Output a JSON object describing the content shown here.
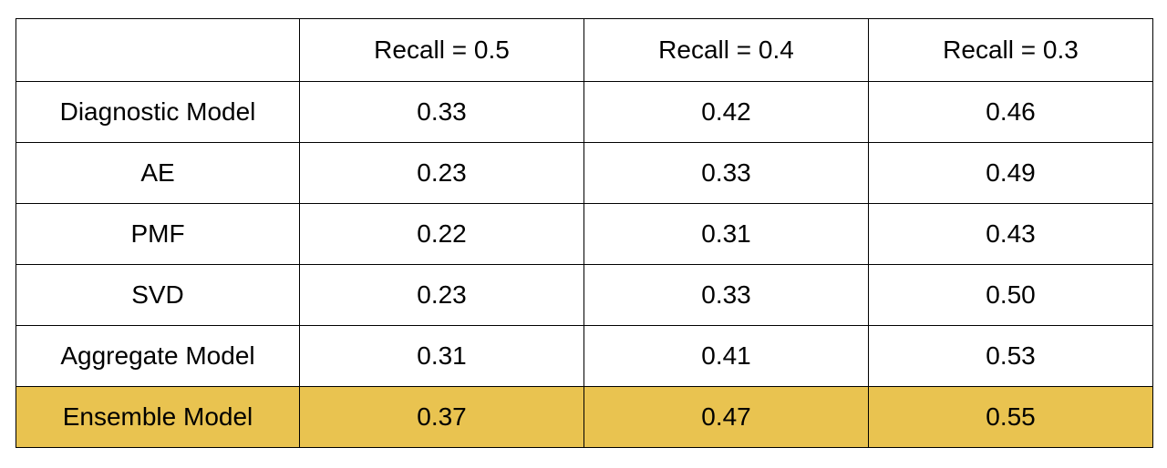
{
  "table": {
    "header": [
      "",
      "Recall = 0.5",
      "Recall = 0.4",
      "Recall = 0.3"
    ],
    "rows": [
      [
        "Diagnostic Model",
        "0.33",
        "0.42",
        "0.46"
      ],
      [
        "AE",
        "0.23",
        "0.33",
        "0.49"
      ],
      [
        "PMF",
        "0.22",
        "0.31",
        "0.43"
      ],
      [
        "SVD",
        "0.23",
        "0.33",
        "0.50"
      ],
      [
        "Aggregate Model",
        "0.31",
        "0.41",
        "0.53"
      ],
      [
        "Ensemble Model",
        "0.37",
        "0.47",
        "0.55"
      ]
    ],
    "highlight_row": 5,
    "highlight_color": "#e9c350"
  }
}
